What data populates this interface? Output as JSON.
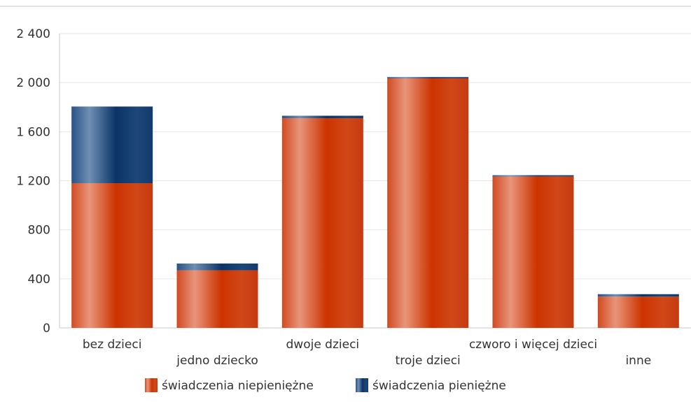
{
  "chart_data": {
    "type": "bar",
    "stacked": true,
    "title": "",
    "xlabel": "",
    "ylabel": "",
    "categories": [
      "bez dzieci",
      "jedno dziecko",
      "dwoje dzieci",
      "troje dzieci",
      "czworo i więcej dzieci",
      "inne"
    ],
    "series": [
      {
        "name": "świadczenia niepieniężne",
        "values": [
          1180,
          470,
          1710,
          2035,
          1235,
          255
        ]
      },
      {
        "name": "świadczenia pieniężne",
        "values": [
          625,
          55,
          20,
          10,
          10,
          20
        ]
      }
    ],
    "ylim": [
      0,
      2400
    ],
    "yticks": [
      0,
      400,
      800,
      1200,
      1600,
      2000,
      2400
    ],
    "ytick_labels": [
      "0",
      "400",
      "800",
      "1 200",
      "1 600",
      "2 000",
      "2 400"
    ],
    "grid": true,
    "legend_position": "bottom",
    "colors": {
      "series_0": "#d03a0e",
      "series_0_highlight": "#e8957a",
      "series_1": "#0f3a6e",
      "series_1_highlight": "#6f8fb3",
      "grid": "#e6e6e6",
      "axis": "#c8c8c8"
    }
  }
}
